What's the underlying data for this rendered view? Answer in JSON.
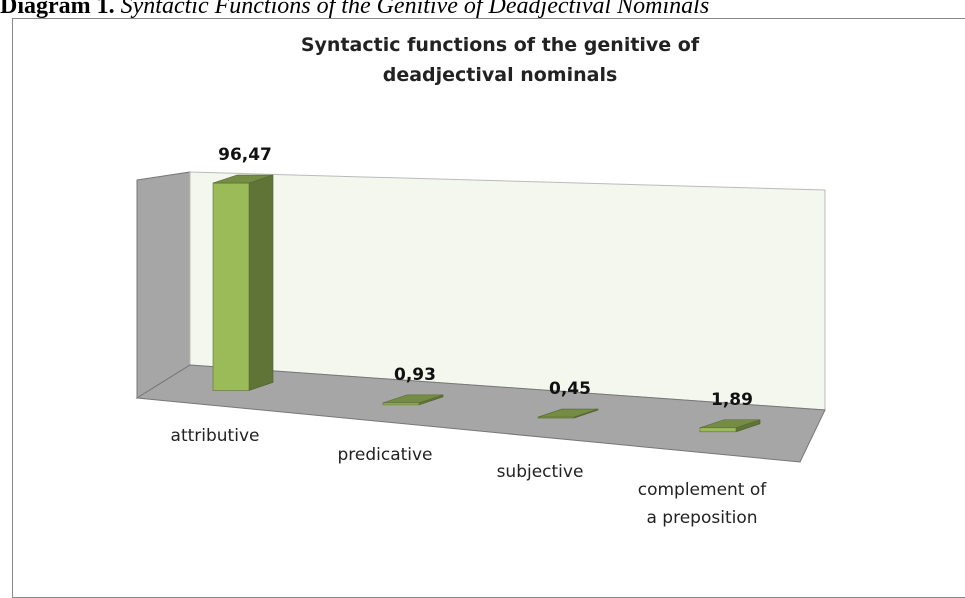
{
  "caption": {
    "label": "Diagram 1.",
    "text": "Syntactic Functions of the Genitive of Deadjectival Nominals"
  },
  "chart_data": {
    "type": "bar3d",
    "title": "Syntactic functions of the genitive of deadjectival nominals",
    "categories": [
      "attributive",
      "predicative",
      "subjective",
      "complement of a preposition"
    ],
    "values": [
      96.47,
      0.93,
      0.45,
      1.89
    ],
    "value_labels": [
      "96,47",
      "0,93",
      "0,45",
      "1,89"
    ],
    "color": "#9bbb59"
  }
}
